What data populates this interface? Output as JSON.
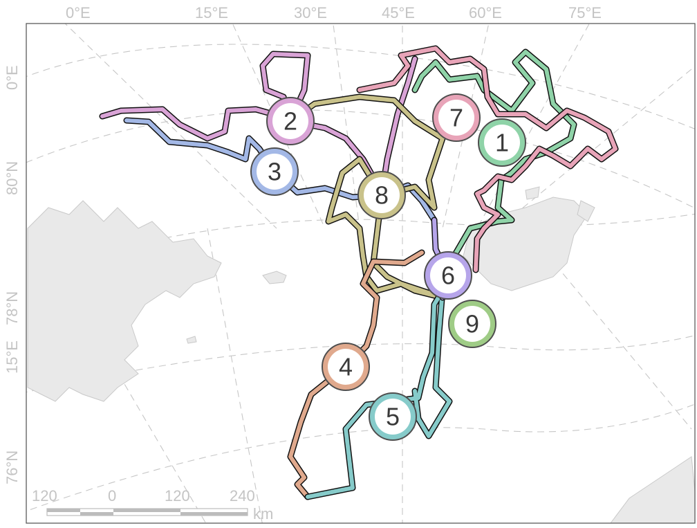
{
  "map": {
    "lon_labels": [
      "0°E",
      "15°E",
      "30°E",
      "45°E",
      "60°E",
      "75°E"
    ],
    "lat_labels_left": [
      "0°E",
      "80°N",
      "78°N",
      "15°E",
      "76°N"
    ],
    "scale_bar": {
      "ticks": [
        "120",
        "0",
        "120",
        "240"
      ],
      "unit": "km"
    },
    "tracks": [
      {
        "id": "1",
        "color": "#8fd3a8"
      },
      {
        "id": "2",
        "color": "#d9a3d6"
      },
      {
        "id": "3",
        "color": "#a3b8e6"
      },
      {
        "id": "4",
        "color": "#e0a98d"
      },
      {
        "id": "5",
        "color": "#86cbca"
      },
      {
        "id": "6",
        "color": "#b6a5ea"
      },
      {
        "id": "7",
        "color": "#e8a4b8"
      },
      {
        "id": "8",
        "color": "#c9c28a"
      },
      {
        "id": "9",
        "color": "#9fcc86"
      }
    ]
  }
}
